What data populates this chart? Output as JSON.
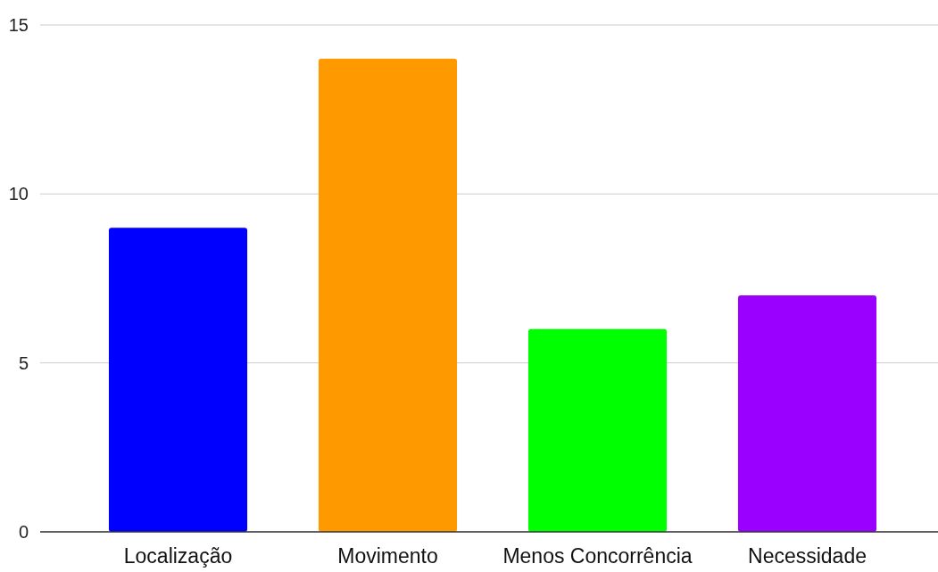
{
  "chart_data": {
    "type": "bar",
    "categories": [
      "Localização",
      "Movimento",
      "Menos Concorrência",
      "Necessidade"
    ],
    "values": [
      9,
      14,
      6,
      7
    ],
    "colors": [
      "#0000ff",
      "#ff9900",
      "#00ff00",
      "#9900ff"
    ],
    "ylim": [
      0,
      15
    ],
    "yticks": [
      0,
      5,
      10,
      15
    ],
    "grid": "y"
  }
}
